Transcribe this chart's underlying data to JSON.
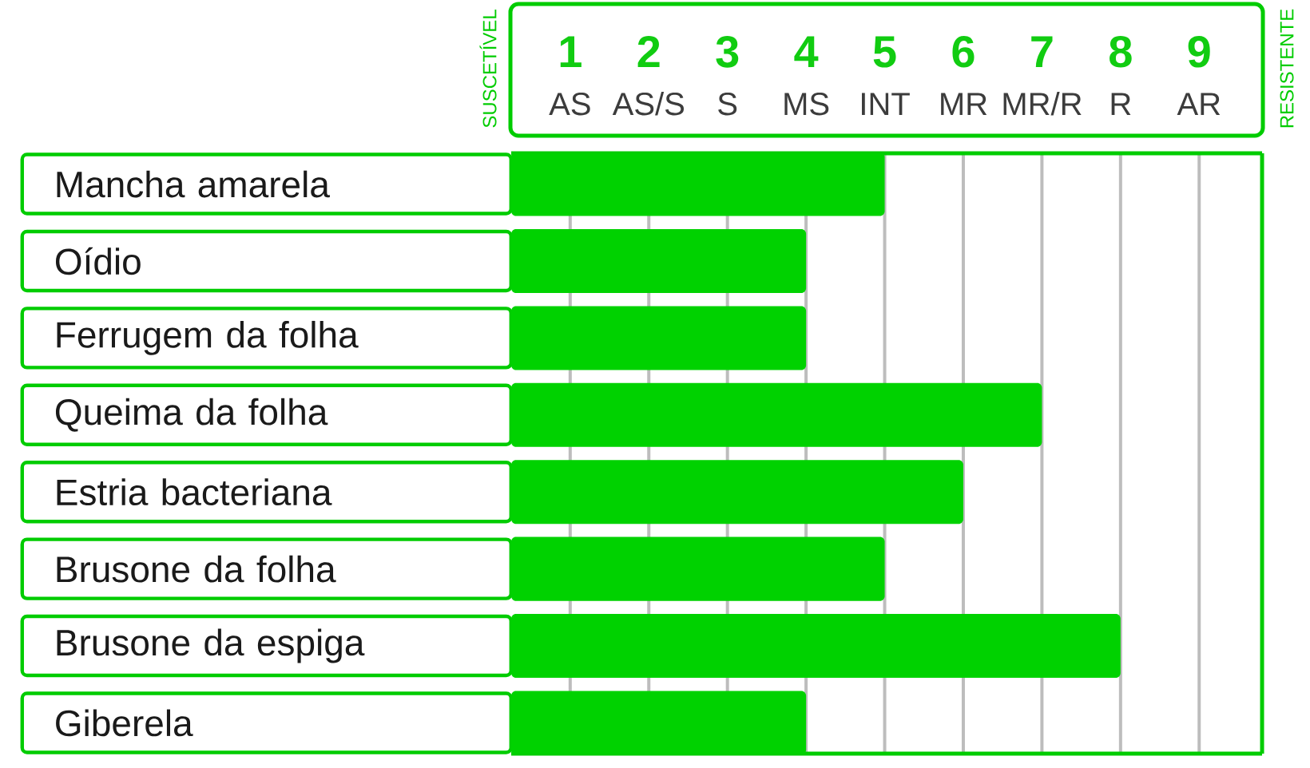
{
  "chart_data": {
    "type": "bar",
    "orientation": "horizontal",
    "categories": [
      "Mancha amarela",
      "Oídio",
      "Ferrugem da folha",
      "Queima da folha",
      "Estria bacteriana",
      "Brusone da folha",
      "Brusone da espiga",
      "Giberela"
    ],
    "values": [
      5,
      4,
      4,
      7,
      6,
      5,
      8,
      4
    ],
    "color": "#00d200",
    "xlim": [
      0.25,
      9.8
    ],
    "xticks": [
      1,
      2,
      3,
      4,
      5,
      6,
      7,
      8,
      9
    ],
    "grid": "x",
    "annotations": [
      "SUSCETÍVEL",
      "AS",
      "AS/S",
      "S",
      "MS",
      "INT",
      "MR",
      "MR/R",
      "R",
      "AR",
      "RESISTENTE"
    ]
  }
}
